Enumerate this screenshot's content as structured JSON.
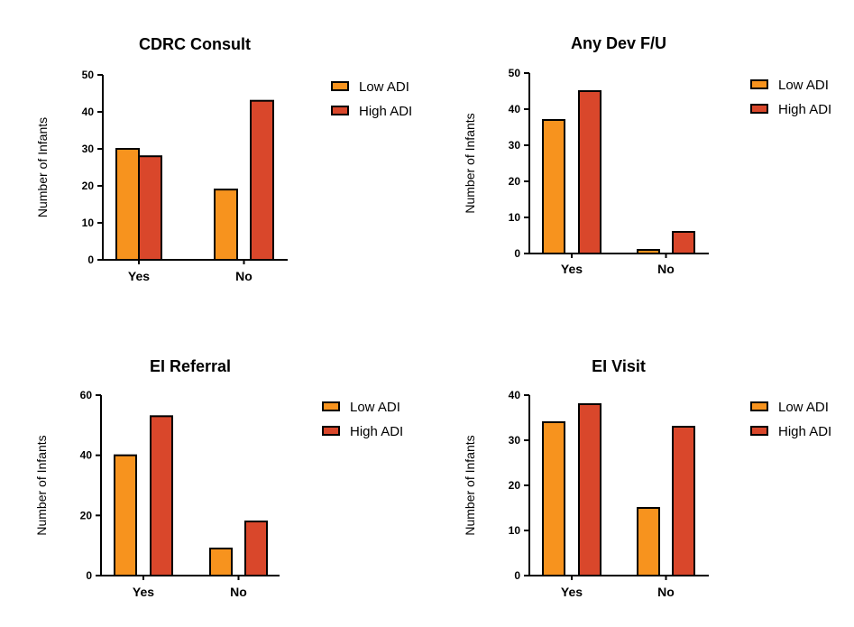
{
  "legend": {
    "labels": [
      "Low ADI",
      "High ADI"
    ],
    "colors": [
      "#F7931E",
      "#D9472B"
    ]
  },
  "chart_data": [
    {
      "type": "bar",
      "title": "CDRC Consult",
      "ylabel": "Number of Infants",
      "categories": [
        "Yes",
        "No"
      ],
      "ylim": [
        0,
        50
      ],
      "yticks": [
        0,
        10,
        20,
        30,
        40,
        50
      ],
      "series": [
        {
          "name": "Low ADI",
          "values": [
            30,
            19
          ]
        },
        {
          "name": "High ADI",
          "values": [
            28,
            43
          ]
        }
      ],
      "legend_position": "right"
    },
    {
      "type": "bar",
      "title": "Any Dev F/U",
      "ylabel": "Number of Infants",
      "categories": [
        "Yes",
        "No"
      ],
      "ylim": [
        0,
        50
      ],
      "yticks": [
        0,
        10,
        20,
        30,
        40,
        50
      ],
      "series": [
        {
          "name": "Low ADI",
          "values": [
            37,
            1
          ]
        },
        {
          "name": "High ADI",
          "values": [
            45,
            6
          ]
        }
      ],
      "legend_position": "right"
    },
    {
      "type": "bar",
      "title": "EI Referral",
      "ylabel": "Number of Infants",
      "categories": [
        "Yes",
        "No"
      ],
      "ylim": [
        0,
        60
      ],
      "yticks": [
        0,
        20,
        40,
        60
      ],
      "series": [
        {
          "name": "Low ADI",
          "values": [
            40,
            9
          ]
        },
        {
          "name": "High ADI",
          "values": [
            53,
            18
          ]
        }
      ],
      "legend_position": "right"
    },
    {
      "type": "bar",
      "title": "EI Visit",
      "ylabel": "Number of Infants",
      "categories": [
        "Yes",
        "No"
      ],
      "ylim": [
        0,
        40
      ],
      "yticks": [
        0,
        10,
        20,
        30,
        40
      ],
      "series": [
        {
          "name": "Low ADI",
          "values": [
            34,
            15
          ]
        },
        {
          "name": "High ADI",
          "values": [
            38,
            33
          ]
        }
      ],
      "legend_position": "right"
    }
  ]
}
